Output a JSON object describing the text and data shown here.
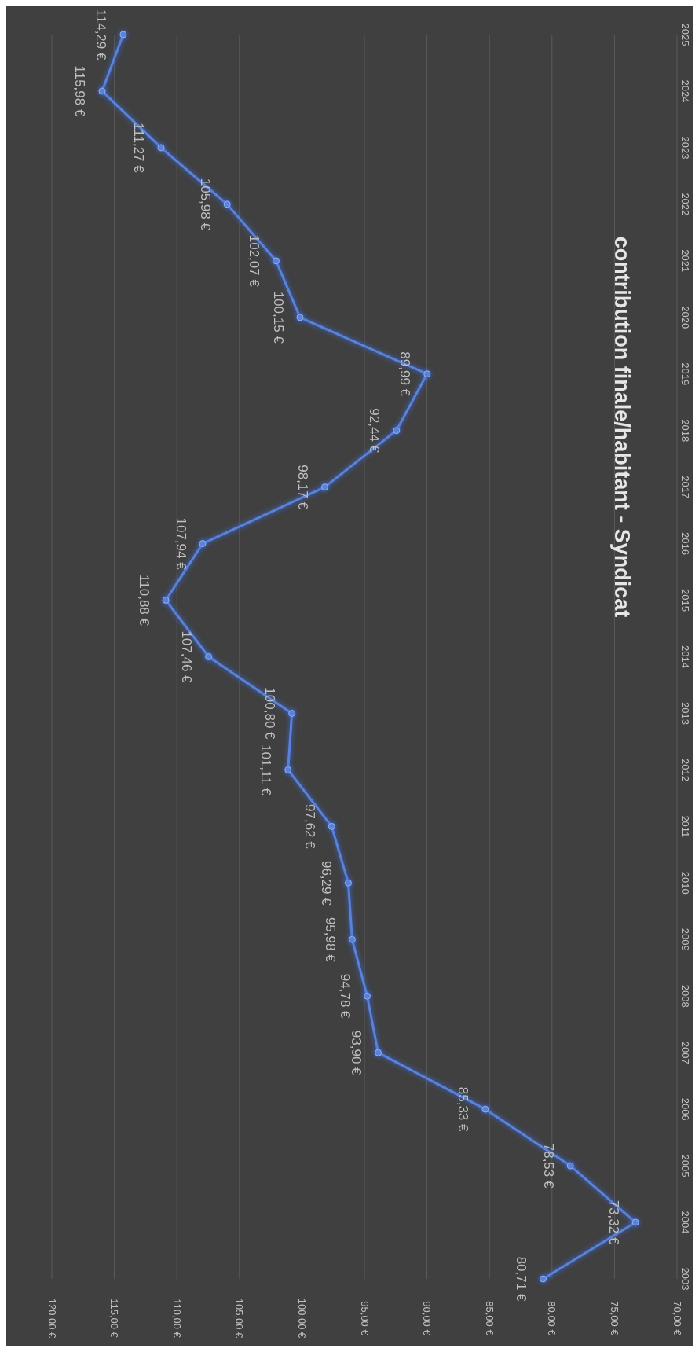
{
  "chart_data": {
    "type": "line",
    "title": "contribution finale/habitant - Syndicat",
    "categories": [
      "2025",
      "2024",
      "2023",
      "2022",
      "2021",
      "2020",
      "2019",
      "2018",
      "2017",
      "2016",
      "2015",
      "2014",
      "2013",
      "2012",
      "2011",
      "2010",
      "2009",
      "2008",
      "2007",
      "2006",
      "2005",
      "2004",
      "2003"
    ],
    "values": [
      114.29,
      115.98,
      111.27,
      105.98,
      102.07,
      100.15,
      89.99,
      92.44,
      98.17,
      107.94,
      110.88,
      107.46,
      100.8,
      101.11,
      97.62,
      96.29,
      95.98,
      94.78,
      93.9,
      85.33,
      78.53,
      73.32,
      80.71
    ],
    "value_labels": [
      "114,29 €",
      "115,98 €",
      "111,27 €",
      "105,98 €",
      "102,07 €",
      "100,15 €",
      "89,99 €",
      "92,44 €",
      "98,17 €",
      "107,94 €",
      "110,88 €",
      "107,46 €",
      "100,80 €",
      "101,11 €",
      "97,62 €",
      "96,29 €",
      "95,98 €",
      "94,78 €",
      "93,90 €",
      "85,33 €",
      "78,53 €",
      "73,32 €",
      "80,71 €"
    ],
    "color": "#5b82d9",
    "orientation": "horizontal",
    "xlim": [
      120,
      70
    ],
    "xticks": [
      {
        "value": 70,
        "label": "70,00 €"
      },
      {
        "value": 75,
        "label": "75,00 €"
      },
      {
        "value": 80,
        "label": "80,00 €"
      },
      {
        "value": 85,
        "label": "85,00 €"
      },
      {
        "value": 90,
        "label": "90,00 €"
      },
      {
        "value": 95,
        "label": "95,00 €"
      },
      {
        "value": 100,
        "label": "100,00 €"
      },
      {
        "value": 105,
        "label": "105,00 €"
      },
      {
        "value": 110,
        "label": "110,00 €"
      },
      {
        "value": 115,
        "label": "115,00 €"
      },
      {
        "value": 120,
        "label": "120,00 €"
      }
    ],
    "grid": "x",
    "marker": "circle",
    "line_style": "solid"
  }
}
